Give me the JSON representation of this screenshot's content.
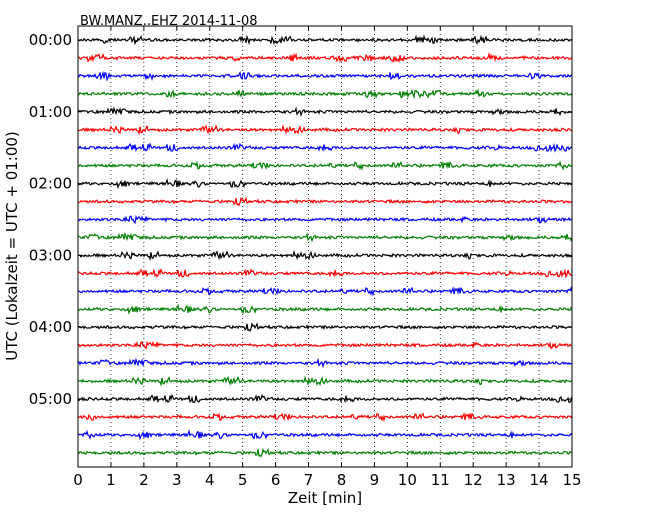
{
  "chart_data": {
    "type": "line",
    "title": "BW.MANZ..EHZ 2014-11-08",
    "xlabel": "Zeit  [min]",
    "ylabel": "UTC (Lokalzeit = UTC + 01:00)",
    "xlim": [
      0,
      15
    ],
    "x_ticks": [
      "0",
      "1",
      "2",
      "3",
      "4",
      "5",
      "6",
      "7",
      "8",
      "9",
      "10",
      "11",
      "12",
      "13",
      "14",
      "15"
    ],
    "y_tick_labels": [
      "00:00",
      "01:00",
      "02:00",
      "03:00",
      "04:00",
      "05:00"
    ],
    "minutes_per_trace": 15,
    "trace_count": 24,
    "trace_colors": [
      "#000000",
      "#ff0000",
      "#0000ff",
      "#008000"
    ],
    "grid": "vertical dotted lines at each minute",
    "series": [
      {
        "start": "00:00",
        "color": "#000000"
      },
      {
        "start": "00:15",
        "color": "#ff0000"
      },
      {
        "start": "00:30",
        "color": "#0000ff"
      },
      {
        "start": "00:45",
        "color": "#008000"
      },
      {
        "start": "01:00",
        "color": "#000000"
      },
      {
        "start": "01:15",
        "color": "#ff0000"
      },
      {
        "start": "01:30",
        "color": "#0000ff"
      },
      {
        "start": "01:45",
        "color": "#008000"
      },
      {
        "start": "02:00",
        "color": "#000000"
      },
      {
        "start": "02:15",
        "color": "#ff0000"
      },
      {
        "start": "02:30",
        "color": "#0000ff"
      },
      {
        "start": "02:45",
        "color": "#008000"
      },
      {
        "start": "03:00",
        "color": "#000000"
      },
      {
        "start": "03:15",
        "color": "#ff0000"
      },
      {
        "start": "03:30",
        "color": "#0000ff"
      },
      {
        "start": "03:45",
        "color": "#008000"
      },
      {
        "start": "04:00",
        "color": "#000000"
      },
      {
        "start": "04:15",
        "color": "#ff0000"
      },
      {
        "start": "04:30",
        "color": "#0000ff"
      },
      {
        "start": "04:45",
        "color": "#008000"
      },
      {
        "start": "05:00",
        "color": "#000000"
      },
      {
        "start": "05:15",
        "color": "#ff0000"
      },
      {
        "start": "05:30",
        "color": "#0000ff"
      },
      {
        "start": "05:45",
        "color": "#008000"
      }
    ]
  }
}
